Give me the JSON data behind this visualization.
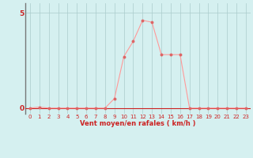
{
  "x": [
    0,
    1,
    2,
    3,
    4,
    5,
    6,
    7,
    8,
    9,
    10,
    11,
    12,
    13,
    14,
    15,
    16,
    17,
    18,
    19,
    20,
    21,
    22,
    23
  ],
  "y": [
    0,
    0.05,
    0,
    0,
    0,
    0,
    0,
    0,
    0,
    0.5,
    2.7,
    3.5,
    4.6,
    4.5,
    2.8,
    2.8,
    2.8,
    0,
    0,
    0,
    0,
    0,
    0,
    0
  ],
  "line_color": "#ff9999",
  "marker_color": "#dd6666",
  "bg_color": "#d5f0f0",
  "grid_color": "#aacccc",
  "axis_color": "#cc2222",
  "ylim": [
    -0.3,
    5.5
  ],
  "yticks": [
    0,
    5
  ],
  "xlim": [
    -0.5,
    23.5
  ],
  "xticks": [
    0,
    1,
    2,
    3,
    4,
    5,
    6,
    7,
    8,
    9,
    10,
    11,
    12,
    13,
    14,
    15,
    16,
    17,
    18,
    19,
    20,
    21,
    22,
    23
  ],
  "xlabel": "Vent moyen/en rafales ( km/h )"
}
